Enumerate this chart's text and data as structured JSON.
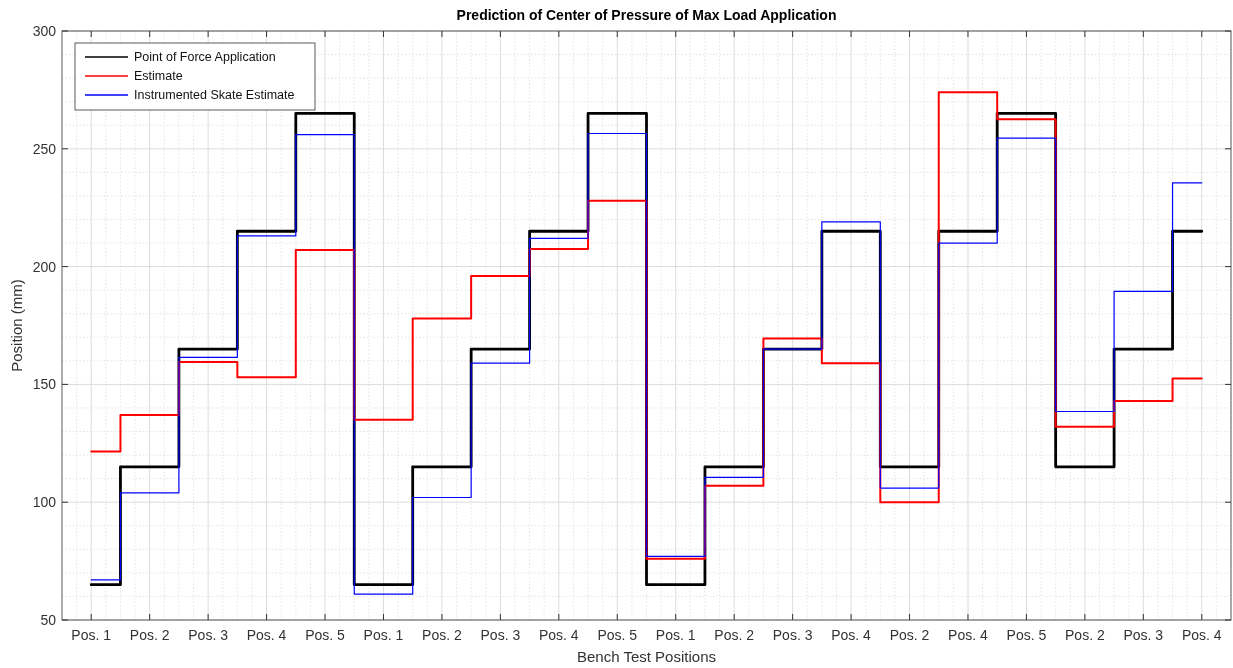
{
  "chart_data": {
    "type": "step",
    "title": "Prediction of Center of Pressure of Max Load Application",
    "xlabel": "Bench Test Positions",
    "ylabel": "Position (mm)",
    "categories": [
      "Pos. 1",
      "Pos. 2",
      "Pos. 3",
      "Pos. 4",
      "Pos. 5",
      "Pos. 1",
      "Pos. 2",
      "Pos. 3",
      "Pos. 4",
      "Pos. 5",
      "Pos. 1",
      "Pos. 2",
      "Pos. 3",
      "Pos. 4",
      "Pos. 2",
      "Pos. 4",
      "Pos. 5",
      "Pos. 2",
      "Pos. 3",
      "Pos. 4"
    ],
    "ylim": [
      50,
      300
    ],
    "yticks": [
      50,
      100,
      150,
      200,
      250,
      300
    ],
    "grid": true,
    "legend": "top left",
    "marker": "none",
    "line_style": "solid",
    "series": [
      {
        "name": "Point of Force Application",
        "color": "#000000",
        "values": [
          65,
          115,
          165,
          215,
          265,
          65,
          115,
          165,
          215,
          265,
          65,
          115,
          165,
          215,
          115,
          215,
          265,
          115,
          165,
          215
        ]
      },
      {
        "name": "Estimate",
        "color": "#ff0000",
        "values": [
          121.5,
          137,
          159.5,
          153,
          207,
          135,
          178,
          196,
          207.5,
          228,
          76,
          107,
          169.5,
          159,
          100,
          274,
          262.5,
          132,
          143,
          152.5
        ]
      },
      {
        "name": "Instrumented Skate Estimate",
        "color": "#0000ff",
        "values": [
          67,
          104,
          161.5,
          213,
          256,
          61,
          102,
          159,
          212,
          256.5,
          77,
          110.5,
          165,
          219,
          106,
          210,
          254.5,
          138.5,
          189.5,
          235.5
        ]
      }
    ]
  }
}
